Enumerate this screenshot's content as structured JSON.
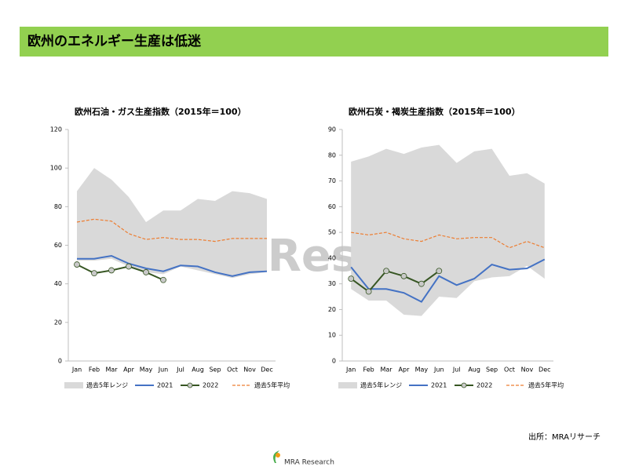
{
  "header": {
    "title": "欧州のエネルギー生産は低迷"
  },
  "watermark": "Res",
  "source": "出所：MRAリサーチ",
  "logo": "MRA Research",
  "chart_data": [
    {
      "type": "line",
      "title": "欧州石油・ガス生産指数（2015年＝100）",
      "categories": [
        "Jan",
        "Feb",
        "Mar",
        "Apr",
        "May",
        "Jun",
        "Jul",
        "Aug",
        "Sep",
        "Oct",
        "Nov",
        "Dec"
      ],
      "ylim": [
        0,
        120
      ],
      "yticks": [
        0,
        20,
        40,
        60,
        80,
        100,
        120
      ],
      "series": [
        {
          "name": "過去5年レンジ",
          "color": "#d9d9d9",
          "type": "range",
          "low": [
            52,
            52,
            53,
            49,
            46,
            45,
            49,
            47,
            45,
            43,
            45,
            46
          ],
          "high": [
            88,
            100,
            94,
            85,
            72,
            78,
            78,
            84,
            83,
            88,
            87,
            84
          ]
        },
        {
          "name": "2021",
          "color": "#4472c4",
          "values": [
            53,
            53,
            54.5,
            50.5,
            48,
            46.5,
            49.5,
            49,
            46,
            44,
            46,
            46.5
          ]
        },
        {
          "name": "2022",
          "color": "#375623",
          "marker": "#c9c9c9",
          "values": [
            50,
            45.5,
            47,
            49,
            46,
            42,
            null,
            null,
            null,
            null,
            null,
            null
          ]
        },
        {
          "name": "過去5年平均",
          "color": "#ed7d31",
          "dashed": true,
          "values": [
            72,
            73.5,
            72.5,
            66,
            63,
            64,
            63,
            63,
            62,
            63.5,
            63.5,
            63.5
          ]
        }
      ]
    },
    {
      "type": "line",
      "title": "欧州石炭・褐炭生産指数（2015年＝100）",
      "categories": [
        "Jan",
        "Feb",
        "Mar",
        "Apr",
        "May",
        "Jun",
        "Jul",
        "Aug",
        "Sep",
        "Oct",
        "Nov",
        "Dec"
      ],
      "ylim": [
        0,
        90
      ],
      "yticks": [
        0,
        10,
        20,
        30,
        40,
        50,
        60,
        70,
        80,
        90
      ],
      "series": [
        {
          "name": "過去5年レンジ",
          "color": "#d9d9d9",
          "type": "range",
          "low": [
            28,
            23.5,
            23.5,
            18,
            17.5,
            25,
            24.5,
            31,
            32.5,
            33,
            37,
            32
          ],
          "high": [
            77.5,
            79.5,
            82.5,
            80.5,
            83,
            84,
            77,
            81.5,
            82.5,
            72,
            73,
            69
          ]
        },
        {
          "name": "2021",
          "color": "#4472c4",
          "values": [
            36.5,
            28,
            28,
            26.5,
            23,
            33,
            29.5,
            32,
            37.5,
            35.5,
            36,
            39.5
          ]
        },
        {
          "name": "2022",
          "color": "#375623",
          "marker": "#c9c9c9",
          "values": [
            32,
            27,
            35,
            33,
            30,
            35,
            null,
            null,
            null,
            null,
            null,
            null
          ]
        },
        {
          "name": "過去5年平均",
          "color": "#ed7d31",
          "dashed": true,
          "values": [
            50,
            49,
            50,
            47.5,
            46.5,
            49,
            47.5,
            48,
            48,
            44,
            46.5,
            44
          ]
        }
      ]
    }
  ]
}
